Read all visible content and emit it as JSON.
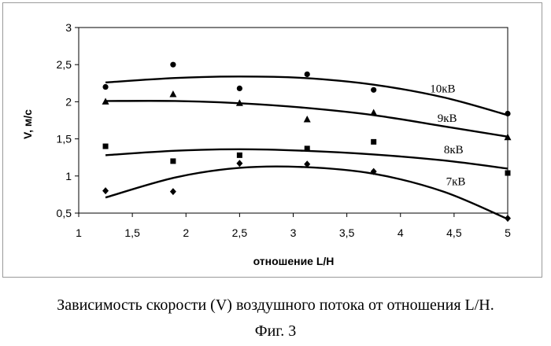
{
  "caption": "Зависимость скорости (V) воздушного потока от отношения L/H.",
  "figure_label": "Фиг. 3",
  "chart_data": {
    "type": "scatter",
    "title": "",
    "xlabel": "отношение L/H",
    "ylabel": "V, м/с",
    "xlim": [
      1,
      5
    ],
    "ylim": [
      0.5,
      3
    ],
    "x_ticks": [
      "1",
      "1,5",
      "2",
      "2,5",
      "3",
      "3,5",
      "4",
      "4,5",
      "5"
    ],
    "y_ticks": [
      "0,5",
      "1",
      "1,5",
      "2",
      "2,5",
      "3"
    ],
    "grid": false,
    "legend": "inline labels",
    "series": [
      {
        "name": "10кВ",
        "marker": "circle",
        "points": [
          [
            1.25,
            2.2
          ],
          [
            1.88,
            2.5
          ],
          [
            2.5,
            2.18
          ],
          [
            3.13,
            2.37
          ],
          [
            3.75,
            2.16
          ],
          [
            5.0,
            1.84
          ]
        ],
        "trend": [
          [
            1.25,
            2.26
          ],
          [
            1.9,
            2.32
          ],
          [
            2.5,
            2.34
          ],
          [
            3.1,
            2.32
          ],
          [
            3.75,
            2.23
          ],
          [
            4.4,
            2.06
          ],
          [
            5.0,
            1.82
          ]
        ]
      },
      {
        "name": "9кВ",
        "marker": "triangle",
        "points": [
          [
            1.25,
            2.0
          ],
          [
            1.88,
            2.1
          ],
          [
            2.5,
            1.98
          ],
          [
            3.13,
            1.76
          ],
          [
            3.75,
            1.85
          ],
          [
            5.0,
            1.52
          ]
        ],
        "trend": [
          [
            1.25,
            2.01
          ],
          [
            1.9,
            2.01
          ],
          [
            2.5,
            1.98
          ],
          [
            3.1,
            1.92
          ],
          [
            3.75,
            1.82
          ],
          [
            4.4,
            1.67
          ],
          [
            5.0,
            1.53
          ]
        ]
      },
      {
        "name": "8кВ",
        "marker": "square",
        "points": [
          [
            1.25,
            1.4
          ],
          [
            1.88,
            1.2
          ],
          [
            2.5,
            1.28
          ],
          [
            3.13,
            1.37
          ],
          [
            3.75,
            1.46
          ],
          [
            5.0,
            1.04
          ]
        ],
        "trend": [
          [
            1.25,
            1.28
          ],
          [
            1.9,
            1.34
          ],
          [
            2.5,
            1.36
          ],
          [
            3.1,
            1.34
          ],
          [
            3.75,
            1.29
          ],
          [
            4.4,
            1.21
          ],
          [
            5.0,
            1.1
          ]
        ]
      },
      {
        "name": "7кВ",
        "marker": "diamond",
        "points": [
          [
            1.25,
            0.8
          ],
          [
            1.88,
            0.79
          ],
          [
            2.5,
            1.17
          ],
          [
            3.13,
            1.16
          ],
          [
            3.75,
            1.06
          ],
          [
            5.0,
            0.43
          ]
        ],
        "trend": [
          [
            1.25,
            0.71
          ],
          [
            1.9,
            0.98
          ],
          [
            2.5,
            1.11
          ],
          [
            3.1,
            1.12
          ],
          [
            3.75,
            1.03
          ],
          [
            4.4,
            0.79
          ],
          [
            5.0,
            0.42
          ]
        ]
      }
    ]
  }
}
